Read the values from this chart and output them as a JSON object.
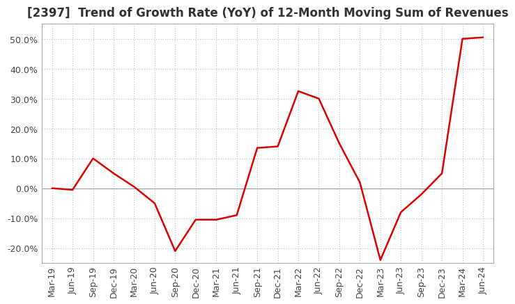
{
  "title": "[2397]  Trend of Growth Rate (YoY) of 12-Month Moving Sum of Revenues",
  "title_fontsize": 12,
  "background_color": "#ffffff",
  "line_color": "#dd0000",
  "grid_color": "#bbbbbb",
  "x_labels": [
    "Mar-19",
    "Jun-19",
    "Sep-19",
    "Dec-19",
    "Mar-20",
    "Jun-20",
    "Sep-20",
    "Dec-20",
    "Mar-21",
    "Jun-21",
    "Sep-21",
    "Dec-21",
    "Mar-22",
    "Jun-22",
    "Sep-22",
    "Dec-22",
    "Mar-23",
    "Jun-23",
    "Sep-23",
    "Dec-23",
    "Mar-24",
    "Jun-24"
  ],
  "y_values": [
    0.0,
    -0.5,
    10.0,
    5.0,
    0.5,
    -5.0,
    -21.0,
    -10.5,
    -10.5,
    -9.0,
    13.5,
    14.0,
    32.5,
    30.0,
    15.0,
    2.0,
    -24.0,
    -8.0,
    -2.0,
    5.0,
    50.0,
    50.5
  ],
  "ylim": [
    -25,
    55
  ],
  "yticks": [
    -20.0,
    -10.0,
    0.0,
    10.0,
    20.0,
    30.0,
    40.0,
    50.0
  ],
  "tick_fontsize": 9,
  "spine_color": "#aaaaaa",
  "line_width": 1.8
}
